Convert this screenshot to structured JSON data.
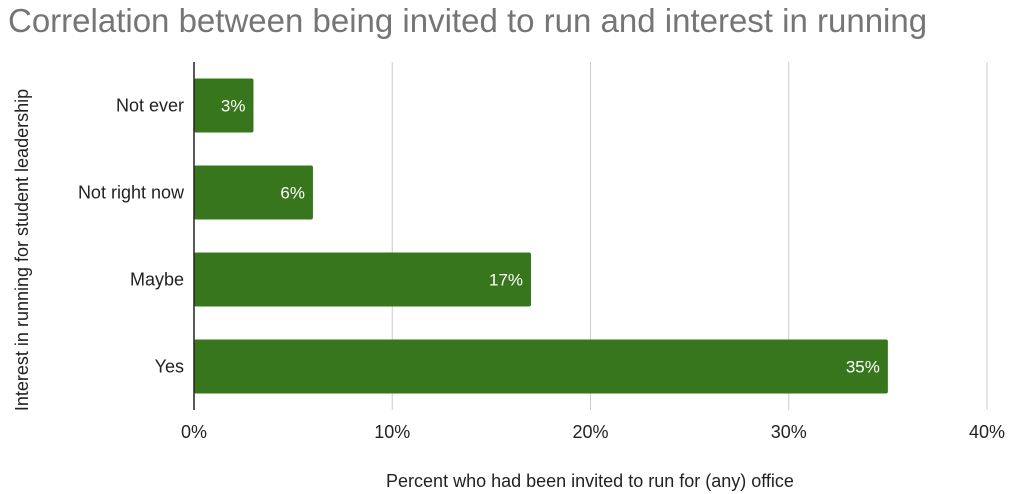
{
  "colors": {
    "bar": "#38761d",
    "title": "#757575"
  },
  "chart_data": {
    "type": "bar",
    "orientation": "horizontal",
    "title": "Correlation between being invited to run and interest in running",
    "xlabel": "Percent who had been invited to run for (any) office",
    "ylabel": "Interest in running for student leadership",
    "categories": [
      "Not ever",
      "Not right now",
      "Maybe",
      "Yes"
    ],
    "values": [
      3,
      6,
      17,
      35
    ],
    "data_labels": [
      "3%",
      "6%",
      "17%",
      "35%"
    ],
    "xlim": [
      0,
      40
    ],
    "xticks": [
      0,
      10,
      20,
      30,
      40
    ],
    "xtick_labels": [
      "0%",
      "10%",
      "20%",
      "30%",
      "40%"
    ],
    "grid": true,
    "legend": "none"
  }
}
